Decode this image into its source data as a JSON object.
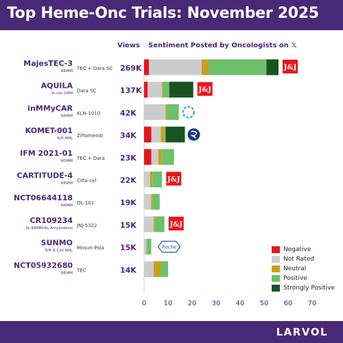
{
  "header": {
    "title": "Top Heme-Onc Trials: November 2025"
  },
  "columns": {
    "views": "Views",
    "sentiment": "Sentiment Posted by Oncologists on 𝕏"
  },
  "footer": {
    "brand": "LARVOL"
  },
  "colors": {
    "Negative": "#e8141c",
    "Not Rated": "#cccccc",
    "Neutral": "#c8a01e",
    "Positive": "#6cc16a",
    "Strongly Positive": "#17541f",
    "purple": "#4a2878"
  },
  "chart_data": {
    "type": "bar",
    "orientation": "horizontal",
    "stacked": true,
    "xlim": [
      0,
      70
    ],
    "xticks": [
      0,
      10,
      20,
      30,
      40,
      50,
      60,
      70
    ],
    "legend_position": "bottom-right",
    "categories": [
      "MajesTEC-3",
      "AQUILA",
      "inMMyCAR",
      "KOMET-001",
      "IFM 2021-01",
      "CARTITUDE-4",
      "NCT06644118",
      "CR109234",
      "SUNMO",
      "NCT05932680"
    ],
    "subtitles": [
      "RRMM",
      "H-risk SMM",
      "RRMM",
      "R/R AML",
      "NDMM",
      "RRMM",
      "RRMM",
      "2L RRMM/AL Amyloidosis",
      "R/R B-Cell NHL",
      "RRMM"
    ],
    "drugs": [
      "TEC + Dara SC",
      "Dara SC",
      "KLN-1010",
      "Ziftomenib",
      "TEC + Dara",
      "Cilta-cel",
      "OL-101",
      "JNJ-5322",
      "Mosun-Pola",
      "TEC"
    ],
    "views": [
      "269K",
      "137K",
      "42K",
      "34K",
      "23K",
      "22K",
      "19K",
      "15K",
      "15K",
      "14K"
    ],
    "logos": [
      "J&J",
      "J&J",
      "ring",
      "kura",
      "",
      "J&J",
      "",
      "J&J",
      "Roche",
      ""
    ],
    "series": [
      {
        "name": "Negative",
        "values": [
          2,
          1.5,
          0,
          3,
          3,
          0,
          0,
          0,
          0,
          0
        ]
      },
      {
        "name": "Not Rated",
        "values": [
          22,
          6,
          9,
          4,
          3,
          2.5,
          3,
          4,
          1,
          4
        ]
      },
      {
        "name": "Neutral",
        "values": [
          3,
          0.5,
          0.5,
          1.5,
          1.5,
          1,
          0.5,
          0.5,
          0,
          3
        ]
      },
      {
        "name": "Positive",
        "values": [
          24,
          2.5,
          5,
          0.5,
          5,
          4,
          3,
          4,
          2,
          3
        ]
      },
      {
        "name": "Strongly Positive",
        "values": [
          5,
          10,
          0,
          8,
          0,
          0,
          0,
          0,
          0,
          0
        ]
      }
    ]
  }
}
